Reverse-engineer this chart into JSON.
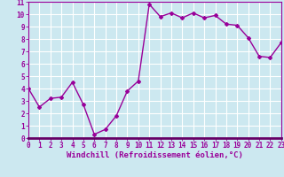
{
  "x": [
    0,
    1,
    2,
    3,
    4,
    5,
    6,
    7,
    8,
    9,
    10,
    11,
    12,
    13,
    14,
    15,
    16,
    17,
    18,
    19,
    20,
    21,
    22,
    23
  ],
  "y": [
    4.0,
    2.5,
    3.2,
    3.3,
    4.5,
    2.7,
    0.3,
    0.7,
    1.8,
    3.8,
    4.6,
    10.8,
    9.8,
    10.1,
    9.7,
    10.1,
    9.7,
    9.9,
    9.2,
    9.1,
    8.1,
    6.6,
    6.5,
    7.7
  ],
  "line_color": "#990099",
  "marker": "D",
  "marker_size": 2,
  "bg_color": "#cce8f0",
  "grid_color": "#ffffff",
  "xlabel": "Windchill (Refroidissement éolien,°C)",
  "xlabel_color": "#990099",
  "xlim": [
    0,
    23
  ],
  "ylim": [
    0,
    11
  ],
  "yticks": [
    0,
    1,
    2,
    3,
    4,
    5,
    6,
    7,
    8,
    9,
    10,
    11
  ],
  "xticks": [
    0,
    1,
    2,
    3,
    4,
    5,
    6,
    7,
    8,
    9,
    10,
    11,
    12,
    13,
    14,
    15,
    16,
    17,
    18,
    19,
    20,
    21,
    22,
    23
  ],
  "tick_color": "#990099",
  "tick_fontsize": 5.5,
  "xlabel_fontsize": 6.5,
  "spine_color": "#990099",
  "linewidth": 1.0,
  "figure_bg": "#cce8f0",
  "bottom_spine_color": "#660066",
  "bottom_spine_width": 2.0
}
